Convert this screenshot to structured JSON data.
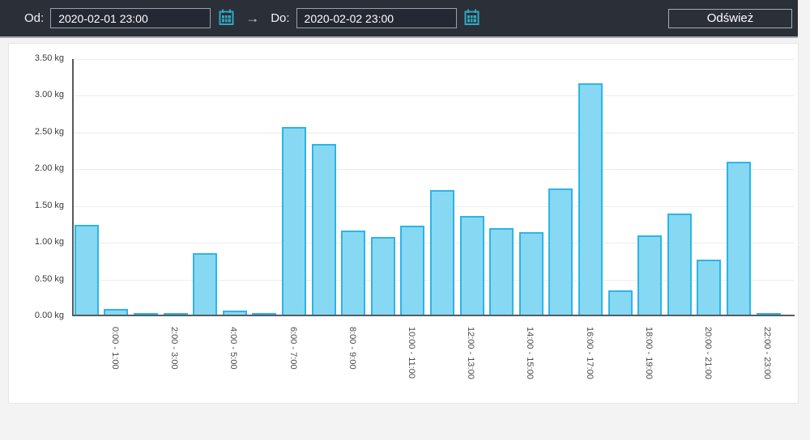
{
  "header": {
    "from_label": "Od:",
    "from_value": "2020-02-01 23:00",
    "to_label": "Do:",
    "to_value": "2020-02-02 23:00",
    "arrow_glyph": "→",
    "refresh_label": "Odśwież"
  },
  "colors": {
    "toolbar_bg": "#2b2f38",
    "calendar_icon": "#2da9c2",
    "bar_fill": "#87d8f3",
    "bar_border": "#2cb5e8",
    "axis": "#565a61",
    "grid": "#ececec"
  },
  "chart_data": {
    "type": "bar",
    "unit": "kg",
    "values": [
      1.22,
      0.08,
      0.01,
      0.01,
      0.84,
      0.05,
      0.01,
      2.55,
      2.32,
      1.15,
      1.06,
      1.21,
      1.7,
      1.34,
      1.18,
      1.12,
      1.72,
      3.15,
      0.33,
      1.08,
      1.38,
      0.75,
      2.08,
      0.01
    ],
    "x_tick_labels": [
      "0:00 - 1:00",
      "2:00 - 3:00",
      "4:00 - 5:00",
      "6:00 - 7:00",
      "8:00 - 9:00",
      "10:00 - 11:00",
      "12:00 - 13:00",
      "14:00 - 15:00",
      "16:00 - 17:00",
      "18:00 - 19:00",
      "20:00 - 21:00",
      "22:00 - 23:00"
    ],
    "x_label_start_index": 1,
    "x_label_every": 2,
    "y_tick_labels": [
      "0.00 kg",
      "0.50 kg",
      "1.00 kg",
      "1.50 kg",
      "2.00 kg",
      "2.50 kg",
      "3.00 kg",
      "3.50 kg"
    ],
    "ylim": [
      0,
      3.5
    ],
    "grid": "horizontal",
    "legend": "none",
    "title": ""
  }
}
